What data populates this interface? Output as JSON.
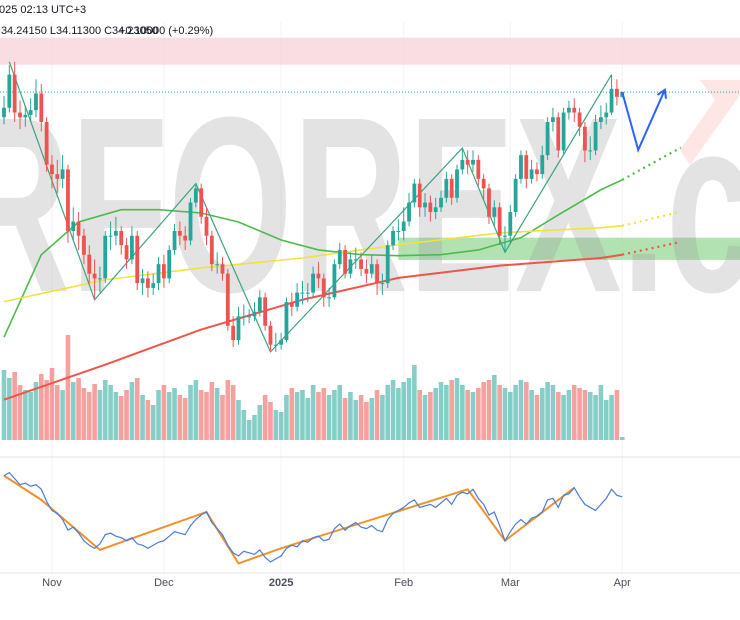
{
  "header": {
    "datetime": "025 02:13 UTC+3",
    "ohlc": "H34.24150 L34.11300 C34.23050",
    "change": "+0.10000 (+0.29%)"
  },
  "watermark": "RFOREX.c",
  "chart_data": {
    "type": "candlestick",
    "open": [
      33.7,
      33.9,
      34.6,
      33.8,
      33.7,
      33.75,
      33.85,
      34.2,
      33.6,
      32.7,
      32.5,
      32.4,
      32.6,
      31.3,
      31.5,
      31.2,
      30.8,
      30.4,
      30.3,
      30.3,
      31.2,
      31.2,
      31.3,
      31.0,
      30.7,
      31.2,
      30.2,
      30.3,
      30.1,
      30.2,
      30.6,
      30.3,
      30.9,
      31.3,
      31.2,
      31.1,
      31.9,
      32.2,
      31.6,
      31.2,
      30.6,
      30.6,
      30.4,
      29.3,
      29.0,
      29.5,
      29.5,
      29.5,
      29.6,
      29.9,
      29.3,
      28.9,
      28.9,
      29.0,
      29.8,
      29.7,
      30.0,
      30.0,
      30.0,
      30.4,
      30.3,
      29.9,
      29.9,
      30.6,
      30.9,
      30.4,
      30.7,
      30.7,
      30.5,
      30.4,
      30.6,
      30.2,
      30.2,
      31.0,
      31.3,
      31.3,
      31.5,
      31.9,
      32.3,
      31.8,
      31.9,
      31.7,
      31.8,
      32.0,
      32.4,
      32.0,
      32.6,
      32.8,
      32.7,
      32.8,
      32.4,
      32.2,
      31.6,
      31.8,
      31.2,
      31.2,
      31.7,
      32.4,
      32.9,
      32.4,
      32.6,
      32.5,
      32.9,
      33.6,
      33.7,
      33.0,
      33.8,
      33.9,
      33.8,
      33.5,
      33.0,
      33.0,
      33.6,
      33.7,
      33.8,
      34.3,
      34.13
    ],
    "high": [
      34.15,
      34.8,
      34.87,
      34.05,
      33.95,
      34.1,
      34.5,
      34.4,
      33.7,
      32.9,
      32.8,
      32.9,
      32.7,
      31.8,
      31.7,
      31.35,
      31.0,
      30.7,
      30.55,
      31.3,
      31.5,
      31.6,
      31.4,
      31.15,
      31.4,
      31.3,
      30.5,
      30.45,
      30.4,
      30.75,
      30.8,
      31.0,
      31.45,
      31.5,
      31.4,
      32.0,
      32.3,
      32.3,
      31.8,
      31.3,
      30.85,
      30.75,
      30.5,
      29.5,
      29.7,
      29.75,
      29.65,
      29.8,
      30.05,
      30.0,
      29.4,
      29.15,
      29.15,
      29.9,
      30.0,
      30.2,
      30.25,
      30.2,
      30.55,
      30.65,
      30.4,
      30.1,
      30.7,
      31.05,
      31.0,
      30.85,
      30.95,
      30.85,
      30.7,
      30.8,
      30.7,
      30.4,
      31.1,
      31.4,
      31.55,
      31.8,
      32.1,
      32.4,
      32.4,
      32.1,
      32.05,
      32.0,
      32.15,
      32.55,
      32.5,
      32.7,
      33.05,
      33.0,
      33.0,
      32.9,
      32.5,
      32.3,
      31.95,
      31.9,
      31.4,
      31.85,
      32.5,
      33.0,
      33.0,
      32.8,
      32.75,
      33.1,
      33.7,
      33.9,
      33.8,
      33.9,
      34.05,
      34.1,
      33.9,
      33.6,
      33.3,
      33.75,
      33.95,
      34.0,
      34.6,
      34.5,
      34.2415
    ],
    "low": [
      33.55,
      33.8,
      33.6,
      33.45,
      33.5,
      33.6,
      33.7,
      33.4,
      32.55,
      32.2,
      32.1,
      32.2,
      31.05,
      31.1,
      30.9,
      30.6,
      30.2,
      29.85,
      30.0,
      30.2,
      30.9,
      31.0,
      30.8,
      30.5,
      30.6,
      30.05,
      29.95,
      29.9,
      29.95,
      30.05,
      30.1,
      30.2,
      30.8,
      31.0,
      30.9,
      31.0,
      31.8,
      31.45,
      31.0,
      30.45,
      30.4,
      30.25,
      29.2,
      28.85,
      28.9,
      29.3,
      29.35,
      29.4,
      29.5,
      29.2,
      28.75,
      28.75,
      28.8,
      28.95,
      29.5,
      29.6,
      29.75,
      29.8,
      29.9,
      30.1,
      29.7,
      29.7,
      29.85,
      30.5,
      30.3,
      30.3,
      30.5,
      30.35,
      30.2,
      30.3,
      29.95,
      29.95,
      30.1,
      30.9,
      31.1,
      31.1,
      31.4,
      31.8,
      31.6,
      31.6,
      31.5,
      31.55,
      31.7,
      31.9,
      31.85,
      31.9,
      32.5,
      32.5,
      32.55,
      32.25,
      31.95,
      31.45,
      31.4,
      31.0,
      30.85,
      31.05,
      31.6,
      32.3,
      32.2,
      32.3,
      32.35,
      32.4,
      32.8,
      33.4,
      32.85,
      32.9,
      33.65,
      33.6,
      33.3,
      32.75,
      32.8,
      32.9,
      33.45,
      33.55,
      33.75,
      33.95,
      34.113
    ],
    "close": [
      33.9,
      34.6,
      33.8,
      33.7,
      33.75,
      33.85,
      34.2,
      33.6,
      32.7,
      32.5,
      32.4,
      32.6,
      31.3,
      31.5,
      31.2,
      30.8,
      30.4,
      30.3,
      30.3,
      31.2,
      31.2,
      31.3,
      31.0,
      30.7,
      31.2,
      30.2,
      30.3,
      30.1,
      30.2,
      30.6,
      30.3,
      30.9,
      31.3,
      31.2,
      31.1,
      31.9,
      32.2,
      31.6,
      31.2,
      30.6,
      30.6,
      30.4,
      29.3,
      29.0,
      29.5,
      29.5,
      29.5,
      29.6,
      29.9,
      29.3,
      28.9,
      28.9,
      29.0,
      29.8,
      29.7,
      30.0,
      30.0,
      30.0,
      30.4,
      30.3,
      29.9,
      29.9,
      30.6,
      30.9,
      30.4,
      30.7,
      30.7,
      30.5,
      30.4,
      30.6,
      30.2,
      30.2,
      31.0,
      31.3,
      31.3,
      31.5,
      31.9,
      32.3,
      31.8,
      31.9,
      31.7,
      31.8,
      32.0,
      32.4,
      32.0,
      32.6,
      32.8,
      32.7,
      32.8,
      32.4,
      32.2,
      31.6,
      31.8,
      31.2,
      31.2,
      31.7,
      32.4,
      32.9,
      32.4,
      32.6,
      32.5,
      32.9,
      33.6,
      33.7,
      33.0,
      33.8,
      33.9,
      33.8,
      33.5,
      33.0,
      33.0,
      33.6,
      33.7,
      33.8,
      34.3,
      34.13,
      34.2305
    ],
    "up_color": "#26a69a",
    "down_color": "#ef5350",
    "volume": [
      70,
      62,
      68,
      55,
      50,
      48,
      58,
      66,
      60,
      72,
      55,
      50,
      105,
      58,
      62,
      52,
      48,
      56,
      50,
      60,
      55,
      48,
      44,
      50,
      58,
      62,
      45,
      40,
      35,
      50,
      55,
      48,
      52,
      45,
      42,
      55,
      60,
      50,
      48,
      58,
      52,
      45,
      60,
      55,
      40,
      30,
      20,
      25,
      35,
      45,
      38,
      30,
      28,
      45,
      52,
      48,
      50,
      42,
      55,
      48,
      52,
      45,
      50,
      55,
      42,
      48,
      40,
      45,
      38,
      42,
      50,
      45,
      55,
      60,
      52,
      58,
      62,
      75,
      50,
      45,
      48,
      52,
      58,
      55,
      60,
      62,
      55,
      50,
      48,
      52,
      58,
      60,
      65,
      55,
      52,
      48,
      55,
      60,
      58,
      50,
      45,
      52,
      58,
      55,
      48,
      45,
      50,
      55,
      52,
      50,
      48,
      45,
      55,
      40,
      45,
      50,
      3
    ],
    "volume_lim": [
      0,
      418
    ],
    "ylim": [
      26.89,
      35.71
    ],
    "xlim": [
      -0.75,
      138.1
    ],
    "xticks": [
      {
        "value": 9,
        "label": "Nov"
      },
      {
        "value": 30,
        "label": "Dec"
      },
      {
        "value": 52,
        "label": "2025"
      },
      {
        "value": 75,
        "label": "Feb"
      },
      {
        "value": 95,
        "label": "Mar"
      },
      {
        "value": 116,
        "label": "Apr"
      }
    ],
    "zones": [
      {
        "ylim": [
          34.81,
          35.38
        ],
        "x_start": -0.75,
        "color": "#f9d3dc"
      },
      {
        "ylim": [
          30.69,
          31.16
        ],
        "x_start": 74,
        "color": "#9fd99f"
      }
    ],
    "moving_averages": [
      {
        "color": "#4cbb4c",
        "x": [
          0,
          7,
          14,
          22,
          29,
          37,
          44,
          52,
          59,
          67,
          74,
          82,
          89,
          97,
          104,
          112,
          116
        ],
        "values": [
          29.06,
          30.8,
          31.49,
          31.75,
          31.75,
          31.68,
          31.49,
          31.11,
          30.9,
          30.8,
          30.78,
          30.8,
          30.9,
          31.16,
          31.64,
          32.17,
          32.38
        ]
      },
      {
        "color": "#f2e23c",
        "x": [
          0,
          19,
          37,
          56,
          74,
          93,
          112,
          116
        ],
        "values": [
          29.81,
          30.27,
          30.52,
          30.73,
          31.01,
          31.26,
          31.37,
          31.41
        ]
      },
      {
        "color": "#f0554a",
        "x": [
          0,
          19,
          37,
          56,
          74,
          93,
          112,
          116
        ],
        "values": [
          27.74,
          28.48,
          29.22,
          29.85,
          30.31,
          30.57,
          30.73,
          30.8
        ]
      }
    ],
    "projections": [
      {
        "color": "#4cbb4c",
        "x": [
          116,
          127
        ],
        "values": [
          32.38,
          33.06
        ]
      },
      {
        "color": "#f2e23c",
        "x": [
          116,
          127
        ],
        "values": [
          31.41,
          31.71
        ]
      },
      {
        "color": "#f0554a",
        "x": [
          116,
          127
        ],
        "values": [
          30.8,
          31.07
        ]
      }
    ],
    "zigzag": {
      "color": "#3aa57e",
      "x": [
        1,
        17,
        36,
        50,
        86,
        94,
        114
      ],
      "values": [
        34.87,
        29.85,
        32.3,
        28.75,
        33.05,
        30.85,
        34.6
      ]
    },
    "forecast": {
      "color": "#2962ff",
      "x": [
        116,
        119,
        124
      ],
      "values": [
        34.23,
        33.01,
        34.28
      ]
    },
    "oscillator": {
      "color": "#4a7bd9",
      "ylim": [
        20,
        90
      ],
      "values": [
        81,
        83,
        79,
        75,
        76,
        74,
        75,
        72,
        64,
        58,
        56,
        52,
        45,
        47,
        43,
        38,
        35,
        33,
        36,
        42,
        43,
        41,
        40,
        38,
        40,
        36,
        35,
        33,
        35,
        37,
        38,
        41,
        44,
        43,
        42,
        48,
        52,
        55,
        57,
        50,
        46,
        42,
        35,
        30,
        28,
        31,
        30,
        29,
        32,
        27,
        24,
        26,
        28,
        33,
        35,
        34,
        38,
        37,
        40,
        41,
        38,
        39,
        46,
        49,
        45,
        48,
        50,
        47,
        46,
        48,
        45,
        44,
        52,
        56,
        58,
        60,
        63,
        65,
        60,
        61,
        62,
        60,
        63,
        66,
        62,
        68,
        70,
        69,
        72,
        66,
        62,
        55,
        57,
        48,
        38,
        44,
        49,
        52,
        49,
        53,
        54,
        57,
        65,
        66,
        60,
        68,
        69,
        73,
        67,
        62,
        60,
        58,
        62,
        66,
        72,
        68,
        67
      ],
      "trendline": {
        "color": "#f0922b",
        "x": [
          0,
          7,
          18,
          38,
          44,
          52,
          87,
          94,
          107
        ],
        "values": [
          81,
          65,
          32,
          57,
          23,
          33,
          72,
          38,
          73
        ]
      }
    }
  }
}
